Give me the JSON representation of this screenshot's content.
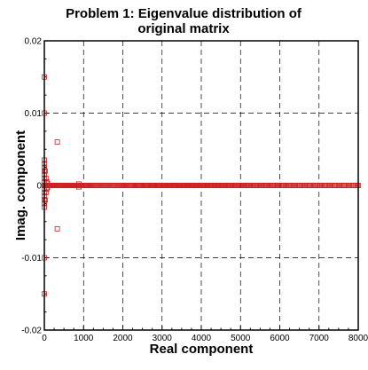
{
  "chart_data": {
    "type": "scatter",
    "title_lines": [
      "Problem 1:  Eigenvalue distribution of",
      "original matrix"
    ],
    "xlabel": "Real component",
    "ylabel": "Imag. component",
    "xlim": [
      0,
      8000
    ],
    "ylim": [
      -0.02,
      0.02
    ],
    "x_ticks": [
      0,
      1000,
      2000,
      3000,
      4000,
      5000,
      6000,
      7000,
      8000
    ],
    "x_tick_labels": [
      "0",
      "1000",
      "2000",
      "3000",
      "4000",
      "5000",
      "6000",
      "7000",
      "8000"
    ],
    "y_ticks": [
      -0.02,
      -0.01,
      0,
      0.01,
      0.02
    ],
    "y_tick_labels": [
      "-0.02",
      "-0.01",
      "0",
      "0.01",
      "0.02"
    ],
    "grid": true,
    "marker": "open-square",
    "marker_color": "#cc2222",
    "points": [
      [
        0,
        0.015
      ],
      [
        0,
        -0.015
      ],
      [
        0,
        0.01
      ],
      [
        0,
        -0.01
      ],
      [
        0,
        0.0035
      ],
      [
        0,
        0.003
      ],
      [
        0,
        0.0025
      ],
      [
        0,
        0.002
      ],
      [
        0,
        0.0015
      ],
      [
        0,
        0.001
      ],
      [
        0,
        0.0005
      ],
      [
        0,
        -0.0005
      ],
      [
        0,
        -0.001
      ],
      [
        0,
        -0.0015
      ],
      [
        0,
        -0.002
      ],
      [
        0,
        -0.0025
      ],
      [
        0,
        -0.003
      ],
      [
        20,
        0.002
      ],
      [
        20,
        -0.002
      ],
      [
        40,
        0.001
      ],
      [
        40,
        -0.001
      ],
      [
        60,
        0.0005
      ],
      [
        60,
        -0.0005
      ],
      [
        80,
        0.0003
      ],
      [
        80,
        -0.0003
      ],
      [
        330,
        0.006
      ],
      [
        330,
        -0.006
      ],
      [
        880,
        0.0002
      ],
      [
        880,
        -0.0002
      ]
    ],
    "real_axis_band": {
      "x_start": 0,
      "x_end": 8000,
      "count": 330,
      "y": 0
    }
  }
}
